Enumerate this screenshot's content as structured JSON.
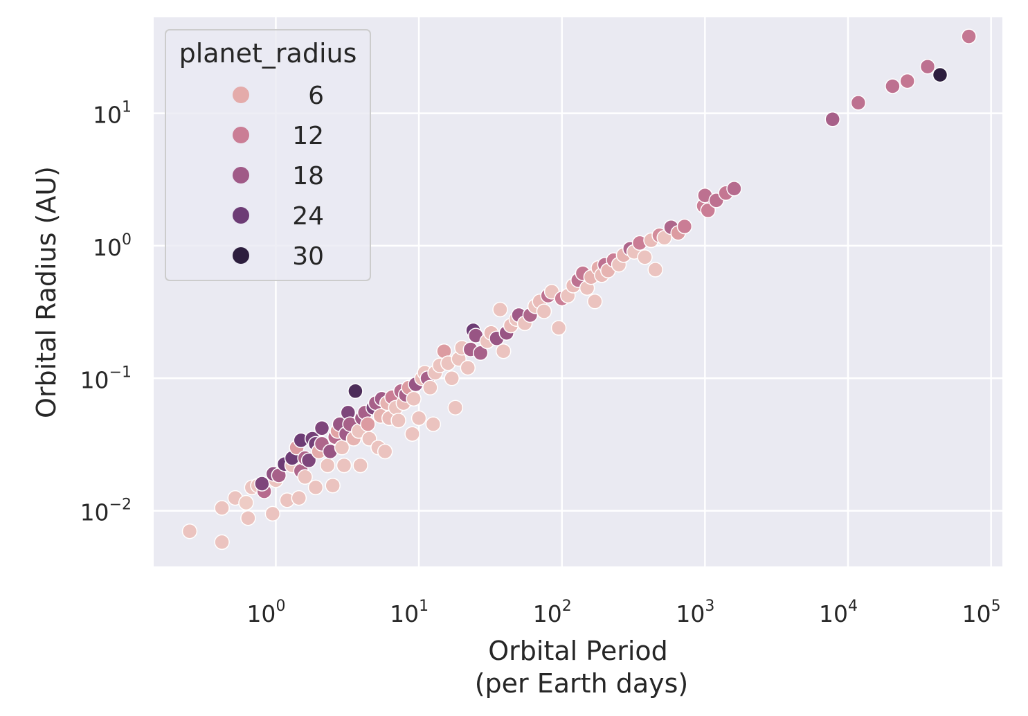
{
  "chart_data": {
    "type": "scatter",
    "xlabel_lines": [
      "Orbital Period",
      "(per Earth days)"
    ],
    "ylabel": "Orbital Radius (AU)",
    "x_scale": "log",
    "y_scale": "log",
    "xlim": [
      0.14,
      120000
    ],
    "ylim": [
      0.0038,
      53
    ],
    "x_ticks": [
      {
        "value": 1,
        "base": "10",
        "exp": "0"
      },
      {
        "value": 10,
        "base": "10",
        "exp": "1"
      },
      {
        "value": 100,
        "base": "10",
        "exp": "2"
      },
      {
        "value": 1000,
        "base": "10",
        "exp": "3"
      },
      {
        "value": 10000,
        "base": "10",
        "exp": "4"
      },
      {
        "value": 100000,
        "base": "10",
        "exp": "5"
      }
    ],
    "y_ticks": [
      {
        "value": 0.01,
        "base": "10",
        "exp": "−2"
      },
      {
        "value": 0.1,
        "base": "10",
        "exp": "−1"
      },
      {
        "value": 1,
        "base": "10",
        "exp": "0"
      },
      {
        "value": 10,
        "base": "10",
        "exp": "1"
      }
    ],
    "grid": true,
    "background_color": "#eaeaf2",
    "hue_field": "planet_radius",
    "hue_range": [
      1,
      30
    ],
    "palette": [
      "#f0d4cc",
      "#e2a4a5",
      "#c77993",
      "#9d5886",
      "#6b3b74",
      "#2d1e3e"
    ],
    "legend": {
      "title": "planet_radius",
      "placement": "upper-left",
      "items": [
        {
          "label": "6",
          "value": 6
        },
        {
          "label": "12",
          "value": 12
        },
        {
          "label": "18",
          "value": 18
        },
        {
          "label": "24",
          "value": 24
        },
        {
          "label": "30",
          "value": 30
        }
      ]
    },
    "points": [
      [
        0.25,
        0.007,
        3
      ],
      [
        0.42,
        0.0058,
        3
      ],
      [
        0.42,
        0.0105,
        3
      ],
      [
        0.52,
        0.0125,
        3
      ],
      [
        0.62,
        0.0115,
        2
      ],
      [
        0.64,
        0.0088,
        3
      ],
      [
        0.68,
        0.015,
        3
      ],
      [
        0.75,
        0.0155,
        3
      ],
      [
        0.83,
        0.014,
        15
      ],
      [
        0.8,
        0.016,
        22
      ],
      [
        0.95,
        0.0095,
        3
      ],
      [
        1.0,
        0.017,
        3
      ],
      [
        0.96,
        0.019,
        20
      ],
      [
        1.05,
        0.0185,
        17
      ],
      [
        1.15,
        0.0225,
        24
      ],
      [
        1.2,
        0.012,
        3
      ],
      [
        1.3,
        0.022,
        3
      ],
      [
        1.3,
        0.025,
        24
      ],
      [
        1.4,
        0.03,
        8
      ],
      [
        1.45,
        0.0125,
        3
      ],
      [
        1.5,
        0.034,
        24
      ],
      [
        1.5,
        0.02,
        16
      ],
      [
        1.6,
        0.018,
        3
      ],
      [
        1.6,
        0.025,
        16
      ],
      [
        1.7,
        0.024,
        22
      ],
      [
        1.8,
        0.035,
        23
      ],
      [
        1.9,
        0.032,
        23
      ],
      [
        1.9,
        0.015,
        3
      ],
      [
        2.0,
        0.028,
        6
      ],
      [
        2.1,
        0.032,
        16
      ],
      [
        2.1,
        0.042,
        22
      ],
      [
        2.3,
        0.022,
        3
      ],
      [
        2.4,
        0.028,
        19
      ],
      [
        2.5,
        0.0155,
        3
      ],
      [
        2.6,
        0.036,
        15
      ],
      [
        2.7,
        0.04,
        7
      ],
      [
        2.8,
        0.045,
        19
      ],
      [
        2.9,
        0.03,
        3
      ],
      [
        3.0,
        0.022,
        3
      ],
      [
        3.1,
        0.038,
        18
      ],
      [
        3.2,
        0.055,
        22
      ],
      [
        3.3,
        0.045,
        17
      ],
      [
        3.5,
        0.035,
        5
      ],
      [
        3.6,
        0.08,
        27
      ],
      [
        3.8,
        0.04,
        3
      ],
      [
        3.9,
        0.022,
        3
      ],
      [
        4.0,
        0.05,
        18
      ],
      [
        4.2,
        0.055,
        17
      ],
      [
        4.4,
        0.045,
        8
      ],
      [
        4.5,
        0.035,
        3
      ],
      [
        4.8,
        0.06,
        22
      ],
      [
        5.0,
        0.065,
        17
      ],
      [
        5.2,
        0.03,
        3
      ],
      [
        5.4,
        0.052,
        5
      ],
      [
        5.5,
        0.07,
        18
      ],
      [
        5.8,
        0.028,
        3
      ],
      [
        6.0,
        0.065,
        5
      ],
      [
        6.2,
        0.05,
        4
      ],
      [
        6.5,
        0.072,
        12
      ],
      [
        6.9,
        0.06,
        3
      ],
      [
        7.2,
        0.048,
        3
      ],
      [
        7.5,
        0.08,
        15
      ],
      [
        7.8,
        0.065,
        4
      ],
      [
        8.1,
        0.075,
        17
      ],
      [
        8.5,
        0.085,
        8
      ],
      [
        9.0,
        0.038,
        3
      ],
      [
        9.2,
        0.07,
        3
      ],
      [
        9.5,
        0.09,
        19
      ],
      [
        10.0,
        0.05,
        3
      ],
      [
        10.5,
        0.1,
        4
      ],
      [
        11.0,
        0.11,
        3
      ],
      [
        11.5,
        0.1,
        17
      ],
      [
        12.0,
        0.085,
        3
      ],
      [
        12.6,
        0.045,
        3
      ],
      [
        13.0,
        0.11,
        3
      ],
      [
        14.0,
        0.125,
        3
      ],
      [
        15.0,
        0.16,
        8
      ],
      [
        16.0,
        0.13,
        3
      ],
      [
        17.0,
        0.1,
        3
      ],
      [
        18.0,
        0.06,
        3
      ],
      [
        19.0,
        0.14,
        3
      ],
      [
        20.0,
        0.17,
        3
      ],
      [
        22.0,
        0.12,
        3
      ],
      [
        23.0,
        0.165,
        17
      ],
      [
        24.0,
        0.23,
        24
      ],
      [
        25.0,
        0.21,
        19
      ],
      [
        27.0,
        0.155,
        17
      ],
      [
        30.0,
        0.19,
        3
      ],
      [
        32.0,
        0.22,
        4
      ],
      [
        35.0,
        0.2,
        19
      ],
      [
        37.0,
        0.33,
        3
      ],
      [
        39.0,
        0.16,
        3
      ],
      [
        41.0,
        0.22,
        19
      ],
      [
        44.0,
        0.25,
        4
      ],
      [
        48.0,
        0.28,
        3
      ],
      [
        50.0,
        0.3,
        18
      ],
      [
        55.0,
        0.26,
        3
      ],
      [
        60.0,
        0.3,
        16
      ],
      [
        65.0,
        0.35,
        3
      ],
      [
        70.0,
        0.38,
        4
      ],
      [
        75.0,
        0.32,
        3
      ],
      [
        80.0,
        0.42,
        14
      ],
      [
        85.0,
        0.45,
        3
      ],
      [
        95.0,
        0.24,
        3
      ],
      [
        100.0,
        0.4,
        12
      ],
      [
        110.0,
        0.42,
        3
      ],
      [
        120.0,
        0.5,
        4
      ],
      [
        130.0,
        0.55,
        14
      ],
      [
        140.0,
        0.62,
        13
      ],
      [
        150.0,
        0.48,
        3
      ],
      [
        160.0,
        0.58,
        5
      ],
      [
        170.0,
        0.38,
        3
      ],
      [
        180.0,
        0.68,
        6
      ],
      [
        190.0,
        0.6,
        4
      ],
      [
        200.0,
        0.72,
        14
      ],
      [
        210.0,
        0.65,
        5
      ],
      [
        230.0,
        0.78,
        12
      ],
      [
        250.0,
        0.72,
        3
      ],
      [
        270.0,
        0.85,
        5
      ],
      [
        300.0,
        0.95,
        16
      ],
      [
        320.0,
        0.9,
        3
      ],
      [
        350.0,
        1.05,
        12
      ],
      [
        380.0,
        0.82,
        3
      ],
      [
        420.0,
        1.1,
        4
      ],
      [
        450.0,
        0.66,
        3
      ],
      [
        480.0,
        1.2,
        10
      ],
      [
        520.0,
        1.15,
        3
      ],
      [
        580.0,
        1.38,
        16
      ],
      [
        650.0,
        1.25,
        8
      ],
      [
        720.0,
        1.4,
        12
      ],
      [
        980.0,
        2.0,
        12
      ],
      [
        1000.0,
        2.4,
        14
      ],
      [
        1050.0,
        1.85,
        12
      ],
      [
        1200.0,
        2.2,
        14
      ],
      [
        1400.0,
        2.5,
        13
      ],
      [
        1600.0,
        2.7,
        15
      ],
      [
        7800.0,
        9.0,
        17
      ],
      [
        11800.0,
        12.0,
        14
      ],
      [
        20500.0,
        16.0,
        14
      ],
      [
        26000.0,
        17.5,
        13
      ],
      [
        36000.0,
        22.5,
        14
      ],
      [
        44000.0,
        19.5,
        30
      ],
      [
        70000.0,
        38.0,
        13
      ]
    ]
  }
}
